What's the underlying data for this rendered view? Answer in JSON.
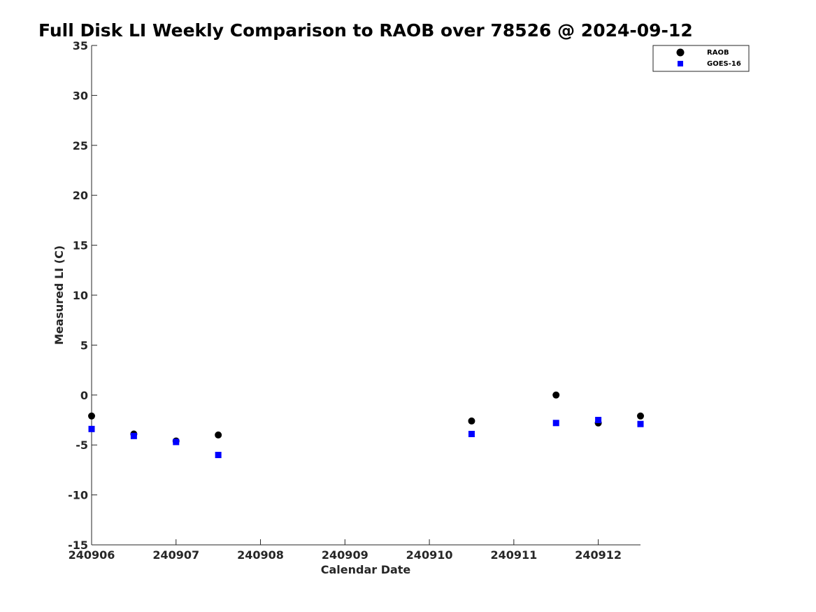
{
  "chart_data": {
    "type": "scatter",
    "title": "Full Disk LI Weekly Comparison to RAOB over 78526 @ 2024-09-12",
    "xlabel": "Calendar Date",
    "ylabel": "Measured LI (C)",
    "x_tick_labels": [
      "240906",
      "240907",
      "240908",
      "240909",
      "240910",
      "240911",
      "240912"
    ],
    "y_ticks": [
      35,
      30,
      25,
      20,
      15,
      10,
      5,
      0,
      -5,
      -10,
      -15
    ],
    "ylim": [
      -15,
      35
    ],
    "xlim": [
      "2024-09-06 00:00",
      "2024-09-12 12:00"
    ],
    "grid": false,
    "legend_position": "top-right",
    "series": [
      {
        "name": "RAOB",
        "marker": "circle",
        "color": "#000000",
        "points": [
          {
            "x": "2024-09-06 00:00",
            "y": -2.1
          },
          {
            "x": "2024-09-06 12:00",
            "y": -3.9
          },
          {
            "x": "2024-09-07 00:00",
            "y": -4.6
          },
          {
            "x": "2024-09-07 12:00",
            "y": -4.0
          },
          {
            "x": "2024-09-10 12:00",
            "y": -2.6
          },
          {
            "x": "2024-09-11 12:00",
            "y": 0.0
          },
          {
            "x": "2024-09-12 00:00",
            "y": -2.8
          },
          {
            "x": "2024-09-12 12:00",
            "y": -2.1
          }
        ]
      },
      {
        "name": "GOES-16",
        "marker": "square",
        "color": "#0000ff",
        "points": [
          {
            "x": "2024-09-06 00:00",
            "y": -3.4
          },
          {
            "x": "2024-09-06 12:00",
            "y": -4.1
          },
          {
            "x": "2024-09-07 00:00",
            "y": -4.7
          },
          {
            "x": "2024-09-07 12:00",
            "y": -6.0
          },
          {
            "x": "2024-09-10 12:00",
            "y": -3.9
          },
          {
            "x": "2024-09-11 12:00",
            "y": -2.8
          },
          {
            "x": "2024-09-12 00:00",
            "y": -2.5
          },
          {
            "x": "2024-09-12 12:00",
            "y": -2.9
          }
        ]
      }
    ]
  }
}
